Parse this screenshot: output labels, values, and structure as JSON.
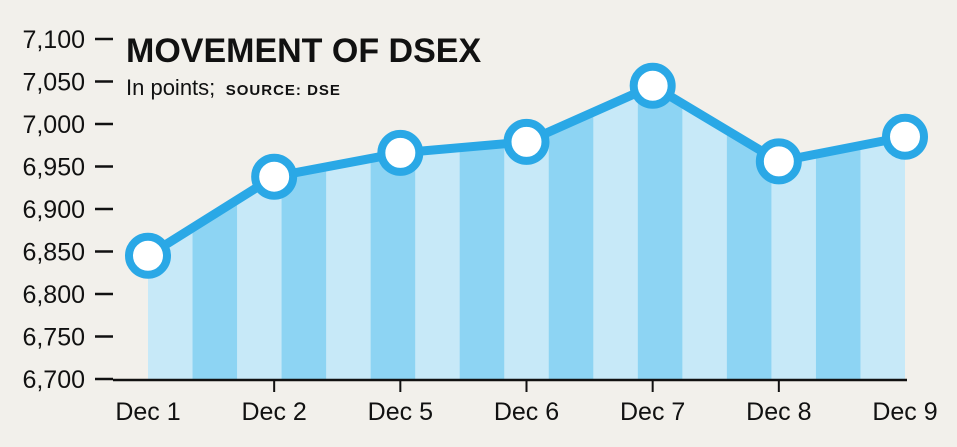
{
  "chart_data": {
    "type": "line",
    "title": "MOVEMENT OF DSEX",
    "subtitle": "In points;",
    "source": "SOURCE: DSE",
    "categories": [
      "Dec 1",
      "Dec 2",
      "Dec 5",
      "Dec 6",
      "Dec 7",
      "Dec 8",
      "Dec 9"
    ],
    "series": [
      {
        "values": [
          6845,
          6938,
          6966,
          6979,
          7045,
          6956,
          6985
        ]
      }
    ],
    "ylim": [
      6700,
      7100
    ],
    "yticks": [
      "6,700",
      "6,750",
      "6,800",
      "6,850",
      "6,900",
      "6,950",
      "7,000",
      "7,050",
      "7,100"
    ],
    "ytick_values": [
      6700,
      6750,
      6800,
      6850,
      6900,
      6950,
      7000,
      7050,
      7100
    ],
    "grid": false,
    "colors": {
      "line": "#2aa8e6",
      "area_light": "#c7e9f8",
      "area_dark": "#8dd4f3",
      "marker_fill": "#ffffff",
      "axis": "#111111",
      "background": "#f2f0eb"
    }
  }
}
